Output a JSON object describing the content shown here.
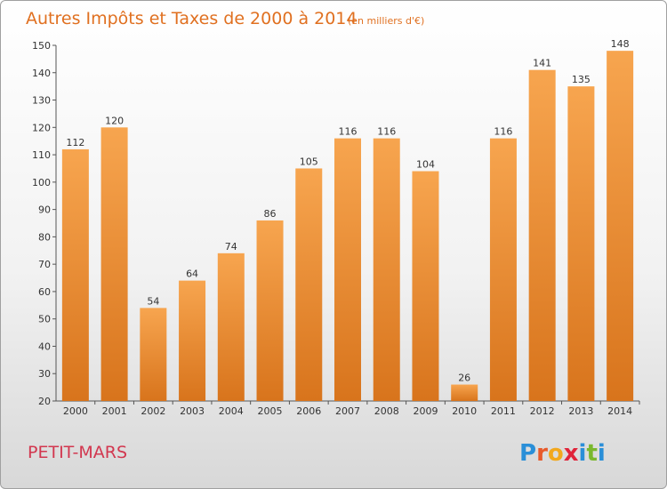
{
  "chart_data": {
    "type": "bar",
    "title": "Autres Impôts et Taxes de 2000 à 2014",
    "unit_note": "(en milliers d'€)",
    "categories": [
      "2000",
      "2001",
      "2002",
      "2003",
      "2004",
      "2005",
      "2006",
      "2007",
      "2008",
      "2009",
      "2010",
      "2011",
      "2012",
      "2013",
      "2014"
    ],
    "values": [
      112,
      120,
      54,
      64,
      74,
      86,
      105,
      116,
      116,
      104,
      26,
      116,
      141,
      135,
      148
    ],
    "ylim": [
      20,
      150
    ],
    "yticks": [
      20,
      30,
      40,
      50,
      60,
      70,
      80,
      90,
      100,
      110,
      120,
      130,
      140,
      150
    ],
    "grid": "none",
    "xlabel": "",
    "ylabel": ""
  },
  "place_name": "PETIT-MARS",
  "brand": {
    "letters": [
      "P",
      "r",
      "o",
      "x",
      "i",
      "t",
      "i"
    ],
    "colors": [
      "#2a8fd8",
      "#e85a2a",
      "#f2a81d",
      "#e0243a",
      "#2a8fd8",
      "#7ab82e",
      "#2a8fd8"
    ]
  },
  "colors": {
    "bar_light": "#f7a54f",
    "bar_dark": "#d8741c",
    "accent": "#e07020"
  }
}
